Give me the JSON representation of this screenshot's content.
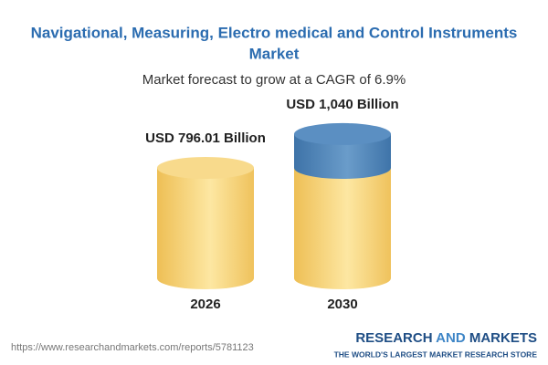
{
  "chart_data": {
    "type": "bar",
    "title": [
      "Navigational, Measuring, Electro medical and Control Instruments",
      "Market"
    ],
    "subtitle": "Market forecast to grow at a CAGR of 6.9%",
    "categories": [
      "2026",
      "2030"
    ],
    "values": [
      796.01,
      1040
    ],
    "value_labels": [
      "USD 796.01 Billion",
      "USD 1,040 Billion"
    ],
    "source": "https://www.researchandmarkets.com/reports/5781123",
    "brand": [
      "RESEARCH",
      "AND",
      "MARKETS"
    ],
    "tagline": "THE WORLD'S LARGEST MARKET RESEARCH STORE"
  }
}
